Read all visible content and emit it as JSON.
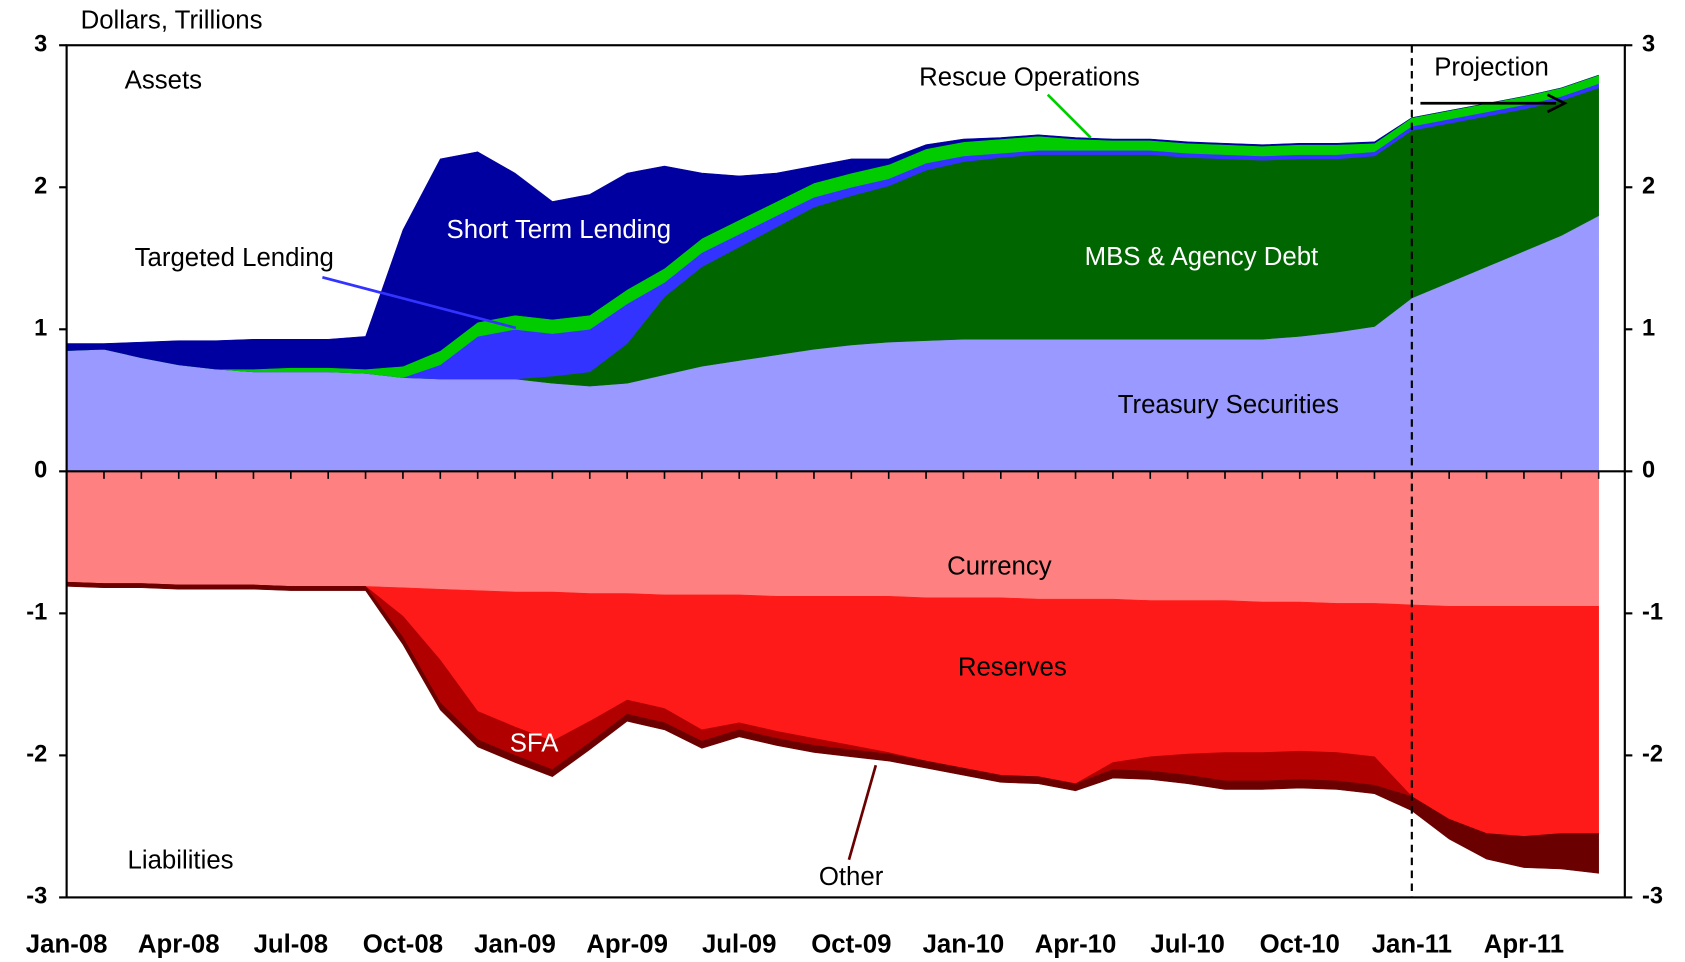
{
  "chart_data": {
    "type": "stacked-area",
    "ylabel": "Dollars, Trillions",
    "categories": [
      "Jan-08",
      null,
      null,
      "Apr-08",
      null,
      null,
      "Jul-08",
      null,
      null,
      "Oct-08",
      null,
      null,
      "Jan-09",
      null,
      null,
      "Apr-09",
      null,
      null,
      "Jul-09",
      null,
      null,
      "Oct-09",
      null,
      null,
      "Jan-10",
      null,
      null,
      "Apr-10",
      null,
      null,
      "Jul-10",
      null,
      null,
      "Oct-10",
      null,
      null,
      "Jan-11",
      null,
      null,
      "Apr-11",
      null,
      null
    ],
    "ylim": [
      -3,
      3
    ],
    "yticks": [
      -3,
      -2,
      -1,
      0,
      1,
      2,
      3
    ],
    "y2lim": [
      -3,
      3
    ],
    "y2ticks": [
      -3,
      -2,
      -1,
      0,
      1,
      2,
      3
    ],
    "series": [
      {
        "name": "Treasury Securities",
        "color": "#9999ff",
        "values": [
          0.85,
          0.86,
          0.8,
          0.75,
          0.72,
          0.7,
          0.7,
          0.7,
          0.69,
          0.66,
          0.65,
          0.65,
          0.65,
          0.62,
          0.6,
          0.62,
          0.68,
          0.74,
          0.78,
          0.82,
          0.86,
          0.89,
          0.91,
          0.92,
          0.93,
          0.93,
          0.93,
          0.93,
          0.93,
          0.93,
          0.93,
          0.93,
          0.93,
          0.95,
          0.98,
          1.02,
          1.22,
          1.33,
          1.44,
          1.55,
          1.66,
          1.8
        ]
      },
      {
        "name": "MBS & Agency Debt",
        "color": "#006600",
        "values": [
          0,
          0,
          0,
          0,
          0,
          0,
          0,
          0,
          0,
          0,
          0,
          0,
          0,
          0.05,
          0.1,
          0.28,
          0.55,
          0.7,
          0.8,
          0.9,
          1.0,
          1.05,
          1.1,
          1.2,
          1.25,
          1.28,
          1.3,
          1.3,
          1.3,
          1.3,
          1.28,
          1.27,
          1.26,
          1.25,
          1.22,
          1.2,
          1.18,
          1.12,
          1.06,
          1.0,
          0.95,
          0.9
        ]
      },
      {
        "name": "Targeted Lending",
        "color": "#3333ff",
        "values": [
          0,
          0,
          0,
          0,
          0,
          0,
          0,
          0,
          0,
          0,
          0.1,
          0.3,
          0.35,
          0.3,
          0.3,
          0.28,
          0.1,
          0.1,
          0.09,
          0.08,
          0.07,
          0.06,
          0.05,
          0.05,
          0.04,
          0.03,
          0.03,
          0.03,
          0.03,
          0.03,
          0.03,
          0.03,
          0.03,
          0.03,
          0.03,
          0.03,
          0.03,
          0.03,
          0.03,
          0.03,
          0.03,
          0.03
        ]
      },
      {
        "name": "Rescue Operations",
        "color": "#00cc00",
        "values": [
          0,
          0,
          0,
          0,
          0,
          0.02,
          0.03,
          0.03,
          0.03,
          0.08,
          0.1,
          0.1,
          0.1,
          0.1,
          0.1,
          0.1,
          0.1,
          0.1,
          0.1,
          0.1,
          0.1,
          0.1,
          0.1,
          0.1,
          0.1,
          0.1,
          0.1,
          0.08,
          0.07,
          0.07,
          0.07,
          0.07,
          0.07,
          0.07,
          0.07,
          0.06,
          0.06,
          0.06,
          0.06,
          0.06,
          0.06,
          0.06
        ]
      },
      {
        "name": "Short Term Lending",
        "color": "#0000a0",
        "values": [
          0.05,
          0.04,
          0.11,
          0.17,
          0.2,
          0.21,
          0.2,
          0.2,
          0.23,
          0.96,
          1.35,
          1.2,
          1.0,
          0.83,
          0.85,
          0.82,
          0.72,
          0.46,
          0.31,
          0.2,
          0.12,
          0.1,
          0.04,
          0.03,
          0.02,
          0.01,
          0.01,
          0.01,
          0.01,
          0.01,
          0.01,
          0.01,
          0.01,
          0.01,
          0.01,
          0.01,
          0,
          0,
          0,
          0,
          0,
          0
        ]
      },
      {
        "name": "Currency",
        "color": "#ff8080",
        "values": [
          -0.78,
          -0.79,
          -0.79,
          -0.8,
          -0.8,
          -0.8,
          -0.81,
          -0.81,
          -0.81,
          -0.82,
          -0.83,
          -0.84,
          -0.85,
          -0.85,
          -0.86,
          -0.86,
          -0.87,
          -0.87,
          -0.87,
          -0.88,
          -0.88,
          -0.88,
          -0.88,
          -0.89,
          -0.89,
          -0.89,
          -0.9,
          -0.9,
          -0.9,
          -0.91,
          -0.91,
          -0.91,
          -0.92,
          -0.92,
          -0.93,
          -0.93,
          -0.94,
          -0.95,
          -0.95,
          -0.95,
          -0.95,
          -0.95
        ]
      },
      {
        "name": "Reserves",
        "color": "#ff1a1a",
        "values": [
          0,
          0,
          0,
          0,
          0,
          0,
          0,
          0,
          0,
          -0.2,
          -0.5,
          -0.85,
          -0.95,
          -1.05,
          -0.9,
          -0.75,
          -0.8,
          -0.95,
          -0.9,
          -0.95,
          -1.0,
          -1.05,
          -1.1,
          -1.15,
          -1.2,
          -1.25,
          -1.25,
          -1.3,
          -1.15,
          -1.1,
          -1.08,
          -1.07,
          -1.06,
          -1.05,
          -1.05,
          -1.08,
          -1.35,
          -1.5,
          -1.6,
          -1.62,
          -1.6,
          -1.6
        ]
      },
      {
        "name": "SFA",
        "color": "#b00000",
        "values": [
          0,
          0,
          0,
          0,
          0,
          0,
          0,
          0,
          0,
          -0.15,
          -0.3,
          -0.2,
          -0.2,
          -0.2,
          -0.15,
          -0.1,
          -0.1,
          -0.08,
          -0.05,
          -0.05,
          -0.05,
          -0.03,
          -0.01,
          0,
          0,
          0,
          0,
          0,
          -0.05,
          -0.1,
          -0.15,
          -0.2,
          -0.2,
          -0.2,
          -0.2,
          -0.2,
          0,
          0,
          0,
          0,
          0,
          0
        ]
      },
      {
        "name": "Other",
        "color": "#6b0000",
        "values": [
          -0.03,
          -0.03,
          -0.03,
          -0.03,
          -0.03,
          -0.03,
          -0.03,
          -0.03,
          -0.03,
          -0.05,
          -0.05,
          -0.05,
          -0.05,
          -0.05,
          -0.05,
          -0.05,
          -0.05,
          -0.05,
          -0.05,
          -0.05,
          -0.05,
          -0.05,
          -0.05,
          -0.05,
          -0.05,
          -0.05,
          -0.05,
          -0.05,
          -0.06,
          -0.06,
          -0.06,
          -0.06,
          -0.06,
          -0.06,
          -0.06,
          -0.06,
          -0.1,
          -0.14,
          -0.18,
          -0.22,
          -0.25,
          -0.28
        ]
      }
    ],
    "annotations": [
      {
        "text": "Assets"
      },
      {
        "text": "Liabilities"
      },
      {
        "text": "Projection",
        "x": "Jan-11"
      }
    ]
  }
}
